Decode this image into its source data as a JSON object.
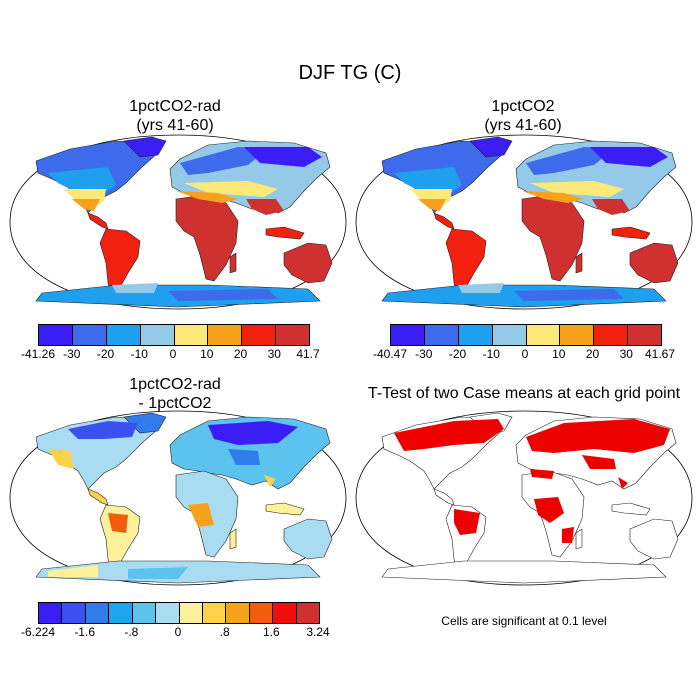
{
  "title": "DJF TG (C)",
  "panels": [
    {
      "id": "p1",
      "title_lines": [
        "1pctCO2-rad",
        "(yrs 41-60)"
      ],
      "type": "temperature",
      "colorbar": {
        "colors": [
          "#3b1ef5",
          "#3e6bec",
          "#1ea0ef",
          "#95c9e8",
          "#fde97a",
          "#f7a11c",
          "#f2200f",
          "#cf3131"
        ],
        "labels": [
          "-41.26",
          "-30",
          "-20",
          "-10",
          "0",
          "10",
          "20",
          "30",
          "41.7"
        ]
      }
    },
    {
      "id": "p2",
      "title_lines": [
        "1pctCO2",
        "(yrs 41-60)"
      ],
      "type": "temperature",
      "colorbar": {
        "colors": [
          "#3b1ef5",
          "#3e6bec",
          "#1ea0ef",
          "#95c9e8",
          "#fde97a",
          "#f7a11c",
          "#f2200f",
          "#cf3131"
        ],
        "labels": [
          "-40.47",
          "-30",
          "-20",
          "-10",
          "0",
          "10",
          "20",
          "30",
          "41.67"
        ]
      }
    },
    {
      "id": "p3",
      "title_lines": [
        "1pctCO2-rad",
        "- 1pctCO2"
      ],
      "type": "difference",
      "colorbar": {
        "colors": [
          "#3b1ef5",
          "#3a50f0",
          "#2f7cea",
          "#1fa5ef",
          "#5cc2ee",
          "#a9dcf0",
          "#fdf09a",
          "#fbd24a",
          "#f7a11c",
          "#f25d0d",
          "#f20d0d",
          "#cf3131"
        ],
        "labels": [
          "-6.224",
          "-1.6",
          "-.8",
          "0",
          ".8",
          "1.6",
          "3.24"
        ]
      }
    },
    {
      "id": "p4",
      "title_lines": [
        "T-Test of two Case means at each grid point"
      ],
      "type": "ttest",
      "note": "Cells are significant at 0.1 level",
      "sig_color": "#ee0000"
    }
  ]
}
